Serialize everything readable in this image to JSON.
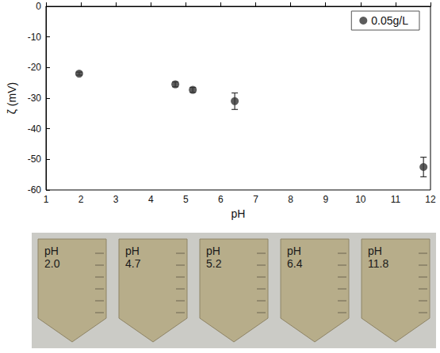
{
  "chart_data": {
    "type": "scatter",
    "x_label": "pH",
    "y_label": "ζ (mV)",
    "xlim": [
      1,
      12
    ],
    "xticks": [
      1,
      2,
      3,
      4,
      5,
      6,
      7,
      8,
      9,
      10,
      11,
      12
    ],
    "ylim": [
      -60,
      0
    ],
    "yticks": [
      -60,
      -50,
      -40,
      -30,
      -20,
      -10,
      0
    ],
    "grid": false,
    "legend": "top-right",
    "series": [
      {
        "name": "0.05g/L",
        "color": "#333333",
        "marker": "circle",
        "x": [
          1.95,
          4.7,
          5.2,
          6.4,
          11.8
        ],
        "values": [
          -22,
          -25.5,
          -27.3,
          -31,
          -52.5
        ],
        "errors": [
          0.5,
          0.8,
          0.8,
          2.7,
          3.2
        ]
      }
    ]
  },
  "vial_labels": [
    "pH 2.0",
    "pH 4.7",
    "pH 5.2",
    "pH 6.4",
    "pH 11.8"
  ]
}
